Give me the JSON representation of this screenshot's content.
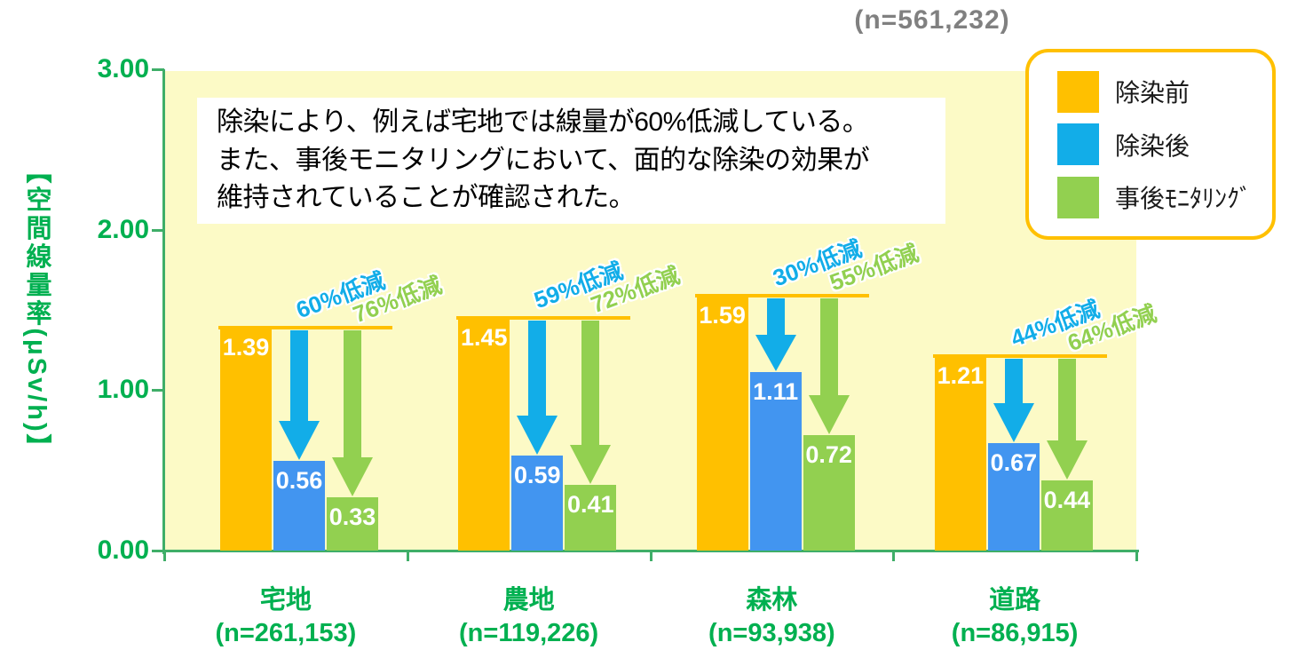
{
  "header": {
    "sample_total": "(n=561,232)",
    "color": "#808080"
  },
  "annotation": {
    "lines": [
      "除染により、例えば宅地では線量が60%低減している。",
      "また、事後モニタリングにおいて、面的な除染の効果が",
      "維持されていることが確認された。"
    ]
  },
  "legend": {
    "border_color": "#FFC000",
    "items": [
      {
        "label": "除染前",
        "color": "#FFC000"
      },
      {
        "label": "除染後",
        "color": "#12ADE8"
      },
      {
        "label": "事後ﾓﾆﾀﾘﾝｸﾞ",
        "color": "#92D050"
      }
    ]
  },
  "y_axis": {
    "title": "【空間線量率(μSv/h)】",
    "ticks": [
      "3.00",
      "2.00",
      "1.00",
      "0.00"
    ]
  },
  "chart_data": {
    "type": "bar",
    "ylabel": "【空間線量率(μSv/h)】",
    "ylim": [
      0,
      3
    ],
    "y_tick_values": [
      3.0,
      2.0,
      1.0,
      0.0
    ],
    "grid": false,
    "legend_position": "top-right",
    "categories": [
      "宅地",
      "農地",
      "森林",
      "道路"
    ],
    "category_counts": [
      "(n=261,153)",
      "(n=119,226)",
      "(n=93,938)",
      "(n=86,915)"
    ],
    "series": [
      {
        "name": "除染前",
        "color": "#FFC000",
        "values": [
          1.39,
          1.45,
          1.59,
          1.21
        ]
      },
      {
        "name": "除染後",
        "color": "#4295F0",
        "values": [
          0.56,
          0.59,
          1.11,
          0.67
        ]
      },
      {
        "name": "事後モニタリング",
        "color": "#92D050",
        "values": [
          0.33,
          0.41,
          0.72,
          0.44
        ]
      }
    ],
    "reductions": {
      "after": [
        "60%低減",
        "59%低減",
        "30%低減",
        "44%低減"
      ],
      "monitoring": [
        "76%低減",
        "72%低減",
        "55%低減",
        "64%低減"
      ]
    },
    "colors": {
      "arrow_after": "#12ADE8",
      "arrow_monitoring": "#92D050",
      "axis_text": "#00B050",
      "axis_line": "#3FAE68",
      "plot_background": "#FCFAC6",
      "baseline_marker": "#FFC000"
    }
  }
}
